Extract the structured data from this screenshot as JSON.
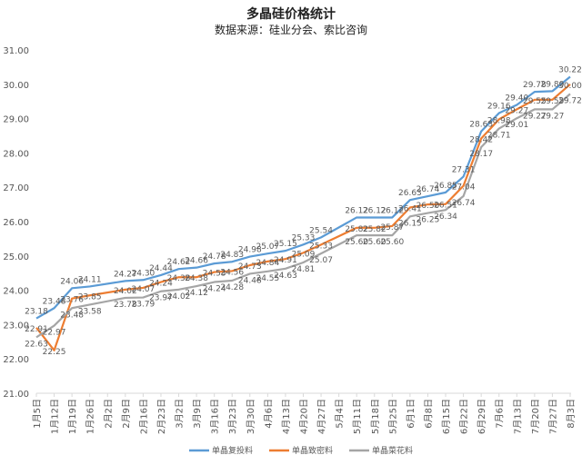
{
  "chart_data": {
    "type": "line",
    "title": "多晶硅价格统计",
    "subtitle": "数据来源：硅业分会、索比咨询",
    "xlabel": "",
    "ylabel": "",
    "ylim": [
      21,
      31
    ],
    "yticks": [
      "21.00",
      "22.00",
      "23.00",
      "24.00",
      "25.00",
      "26.00",
      "27.00",
      "28.00",
      "29.00",
      "30.00",
      "31.00"
    ],
    "grid": false,
    "legend": "bottom",
    "categories": [
      "1月5日",
      "1月12日",
      "1月19日",
      "1月26日",
      "2月2日",
      "2月9日",
      "2月16日",
      "2月23日",
      "3月2日",
      "3月9日",
      "3月16日",
      "3月23日",
      "3月30日",
      "4月6日",
      "4月13日",
      "4月20日",
      "4月27日",
      "5月4日",
      "5月11日",
      "5月18日",
      "5月25日",
      "6月1日",
      "6月8日",
      "6月15日",
      "6月22日",
      "6月29日",
      "7月6日",
      "7月13日",
      "7月20日",
      "7月27日",
      "8月3日"
    ],
    "series": [
      {
        "name": "单晶复投料",
        "color": "#5b9bd5",
        "values": [
          23.18,
          23.48,
          24.06,
          24.11,
          null,
          24.27,
          24.3,
          24.44,
          24.62,
          24.66,
          24.78,
          24.83,
          24.98,
          25.07,
          25.15,
          25.33,
          25.54,
          null,
          26.12,
          26.12,
          26.12,
          26.63,
          26.74,
          26.85,
          27.31,
          28.63,
          29.16,
          29.4,
          29.78,
          29.8,
          30.22
        ]
      },
      {
        "name": "单晶致密料",
        "color": "#ed7d31",
        "values": [
          22.91,
          22.25,
          23.76,
          23.85,
          null,
          24.02,
          24.07,
          24.24,
          24.38,
          24.38,
          24.53,
          24.56,
          24.73,
          24.84,
          24.91,
          25.09,
          25.33,
          null,
          25.82,
          25.82,
          25.87,
          26.41,
          26.5,
          26.51,
          27.04,
          28.42,
          28.98,
          29.27,
          29.55,
          29.55,
          30.0
        ]
      },
      {
        "name": "单晶菜花料",
        "color": "#a5a5a5",
        "values": [
          22.63,
          22.97,
          23.48,
          23.58,
          null,
          23.78,
          23.79,
          23.97,
          24.02,
          24.12,
          24.24,
          24.28,
          24.48,
          24.55,
          24.63,
          24.81,
          25.07,
          null,
          25.6,
          25.6,
          25.6,
          26.15,
          26.25,
          26.34,
          26.74,
          28.17,
          28.71,
          29.01,
          29.27,
          29.27,
          29.72
        ]
      }
    ]
  }
}
